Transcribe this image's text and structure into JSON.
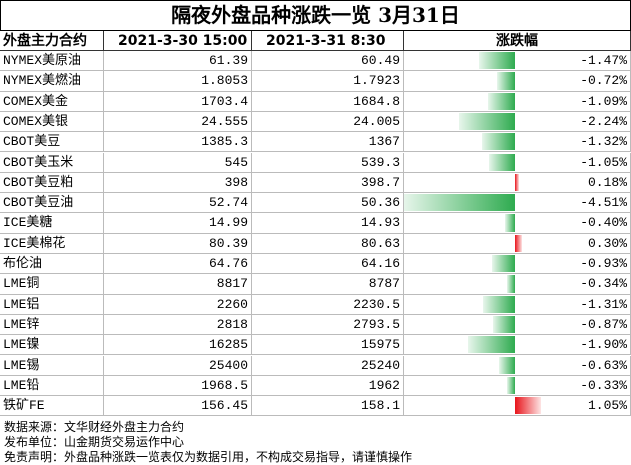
{
  "title": "隔夜外盘品种涨跌一览 3月31日",
  "table": {
    "header": [
      "外盘主力合约",
      "2021-3-30 15:00",
      "2021-3-31 8:30",
      "涨跌幅"
    ],
    "rows": [
      {
        "name": "NYMEX美原油",
        "prev": "61.39",
        "curr": "60.49",
        "change": -1.47,
        "change_label": "-1.47%"
      },
      {
        "name": "NYMEX美燃油",
        "prev": "1.8053",
        "curr": "1.7923",
        "change": -0.72,
        "change_label": "-0.72%"
      },
      {
        "name": "COMEX美金",
        "prev": "1703.4",
        "curr": "1684.8",
        "change": -1.09,
        "change_label": "-1.09%"
      },
      {
        "name": "COMEX美银",
        "prev": "24.555",
        "curr": "24.005",
        "change": -2.24,
        "change_label": "-2.24%"
      },
      {
        "name": "CBOT美豆",
        "prev": "1385.3",
        "curr": "1367",
        "change": -1.32,
        "change_label": "-1.32%"
      },
      {
        "name": "CBOT美玉米",
        "prev": "545",
        "curr": "539.3",
        "change": -1.05,
        "change_label": "-1.05%"
      },
      {
        "name": "CBOT美豆粕",
        "prev": "398",
        "curr": "398.7",
        "change": 0.18,
        "change_label": "0.18%"
      },
      {
        "name": "CBOT美豆油",
        "prev": "52.74",
        "curr": "50.36",
        "change": -4.51,
        "change_label": "-4.51%"
      },
      {
        "name": "ICE美糖",
        "prev": "14.99",
        "curr": "14.93",
        "change": -0.4,
        "change_label": "-0.40%"
      },
      {
        "name": "ICE美棉花",
        "prev": "80.39",
        "curr": "80.63",
        "change": 0.3,
        "change_label": "0.30%"
      },
      {
        "name": "布伦油",
        "prev": "64.76",
        "curr": "64.16",
        "change": -0.93,
        "change_label": "-0.93%"
      },
      {
        "name": "LME铜",
        "prev": "8817",
        "curr": "8787",
        "change": -0.34,
        "change_label": "-0.34%"
      },
      {
        "name": "LME铝",
        "prev": "2260",
        "curr": "2230.5",
        "change": -1.31,
        "change_label": "-1.31%"
      },
      {
        "name": "LME锌",
        "prev": "2818",
        "curr": "2793.5",
        "change": -0.87,
        "change_label": "-0.87%"
      },
      {
        "name": "LME镍",
        "prev": "16285",
        "curr": "15975",
        "change": -1.9,
        "change_label": "-1.90%"
      },
      {
        "name": "LME锡",
        "prev": "25400",
        "curr": "25240",
        "change": -0.63,
        "change_label": "-0.63%"
      },
      {
        "name": "LME铅",
        "prev": "1968.5",
        "curr": "1962",
        "change": -0.33,
        "change_label": "-0.33%"
      },
      {
        "name": "铁矿FE",
        "prev": "156.45",
        "curr": "158.1",
        "change": 1.05,
        "change_label": "1.05%"
      }
    ]
  },
  "footer": [
    "数据来源：文华财经外盘主力合约",
    "发布单位：山金期货交易运作中心",
    "免责声明：外盘品种涨跌一览表仅为数据引用，不构成交易指导，请谨慎操作"
  ]
}
